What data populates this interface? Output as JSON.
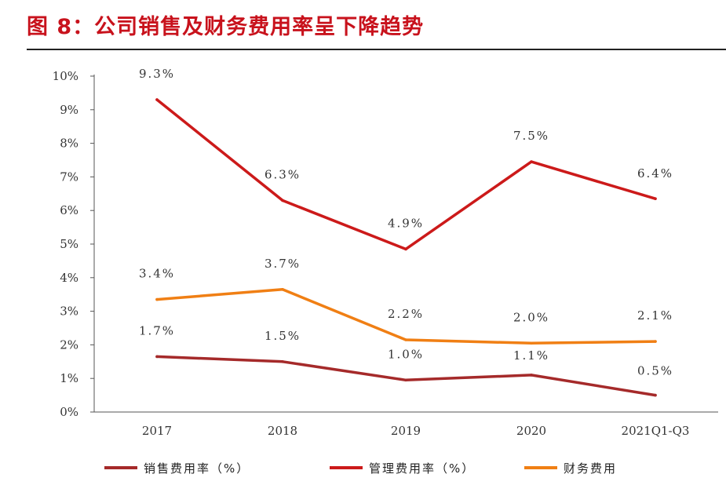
{
  "figure": {
    "title": "图 8：公司销售及财务费用率呈下降趋势"
  },
  "chart_data": {
    "type": "line",
    "categories": [
      "2017",
      "2018",
      "2019",
      "2020",
      "2021Q1-Q3"
    ],
    "ylim": [
      0,
      10
    ],
    "y_ticks": [
      "0%",
      "1%",
      "2%",
      "3%",
      "4%",
      "5%",
      "6%",
      "7%",
      "8%",
      "9%",
      "10%"
    ],
    "grid": false,
    "legend_position": "bottom",
    "series": [
      {
        "name": "销售费用率（%）",
        "color": "#a52a2a",
        "values": [
          1.65,
          1.5,
          0.95,
          1.1,
          0.5
        ],
        "labels": [
          "1.7%",
          "1.5%",
          "1.0%",
          "1.1%",
          "0.5%"
        ]
      },
      {
        "name": "管理费用率（%）",
        "color": "#cc1a1a",
        "values": [
          9.3,
          6.3,
          4.85,
          7.45,
          6.35
        ],
        "labels": [
          "9.3%",
          "6.3%",
          "4.9%",
          "7.5%",
          "6.4%"
        ]
      },
      {
        "name": "财务费用",
        "color": "#f07f14",
        "values": [
          3.35,
          3.65,
          2.15,
          2.05,
          2.1
        ],
        "labels": [
          "3.4%",
          "3.7%",
          "2.2%",
          "2.0%",
          "2.1%"
        ]
      }
    ]
  }
}
